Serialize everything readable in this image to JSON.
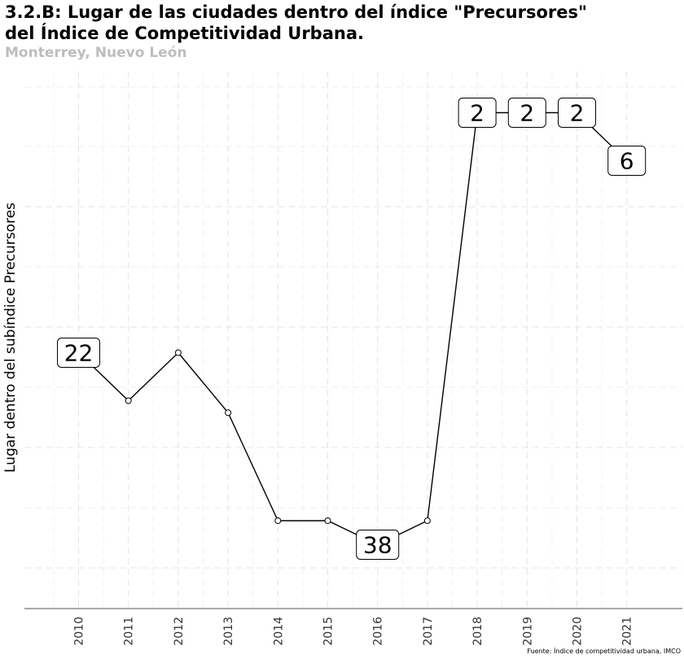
{
  "header": {
    "title_line1": "3.2.B: Lugar de las ciudades dentro del índice \"Precursores\"",
    "title_line2": "del Índice de Competitividad Urbana.",
    "subtitle": "Monterrey, Nuevo León",
    "caption": "Fuente: Índice de competitividad urbana, IMCO"
  },
  "chart_data": {
    "type": "line",
    "title": "3.2.B: Lugar de las ciudades dentro del índice \"Precursores\" del Índice de Competitividad Urbana.",
    "subtitle": "Monterrey, Nuevo León",
    "xlabel": "",
    "ylabel": "Lugar dentro del subíndice Precursores",
    "x": [
      "2010",
      "2011",
      "2012",
      "2013",
      "2014",
      "2015",
      "2016",
      "2017",
      "2018",
      "2019",
      "2020",
      "2021"
    ],
    "y_axis_reversed": true,
    "ylim": [
      0,
      42
    ],
    "grid": "dashed",
    "series": [
      {
        "name": "",
        "color": "#000000",
        "values": [
          22,
          26,
          22,
          27,
          36,
          36,
          38,
          36,
          2,
          2,
          2,
          6
        ],
        "labeled_points": [
          0,
          6,
          8,
          9,
          10,
          11
        ]
      }
    ]
  }
}
